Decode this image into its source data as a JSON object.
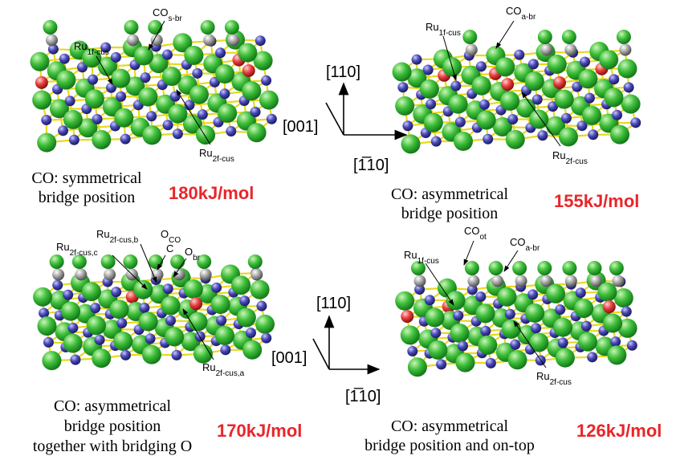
{
  "panels": [
    {
      "labels": [
        {
          "base": "Ru",
          "sub": "1f-cus"
        },
        {
          "base": "CO",
          "sub": "s-br"
        },
        {
          "base": "Ru",
          "sub": "2f-cus"
        }
      ],
      "caption": [
        "CO: symmetrical",
        "bridge position"
      ],
      "energy": "180kJ/mol"
    },
    {
      "labels": [
        {
          "base": "Ru",
          "sub": "1f-cus"
        },
        {
          "base": "CO",
          "sub": "a-br"
        },
        {
          "base": "Ru",
          "sub": "2f-cus"
        }
      ],
      "caption": [
        "CO: asymmetrical",
        "bridge position"
      ],
      "energy": "155kJ/mol"
    },
    {
      "labels": [
        {
          "base": "Ru",
          "sub": "2f-cus,c"
        },
        {
          "base": "Ru",
          "sub": "2f-cus,b"
        },
        {
          "base": "O",
          "sub": "CO"
        },
        {
          "base": "C"
        },
        {
          "base": "O",
          "sub": "br"
        },
        {
          "base": "Ru",
          "sub": "2f-cus,a"
        }
      ],
      "caption": [
        "CO: asymmetrical",
        "bridge position",
        "together with bridging O"
      ],
      "energy": "170kJ/mol"
    },
    {
      "labels": [
        {
          "base": "Ru",
          "sub": "1f-cus"
        },
        {
          "base": "CO",
          "sub": "ot"
        },
        {
          "base": "CO",
          "sub": "a-br"
        },
        {
          "base": "Ru",
          "sub": "2f-cus"
        }
      ],
      "caption": [
        "CO: asymmetrical",
        "bridge position and on-top"
      ],
      "energy": "126kJ/mol"
    }
  ],
  "axes": [
    {
      "up": "[110]",
      "left": "[001]",
      "right": "[1̅10]"
    },
    {
      "up": "[110]",
      "left": "[001]",
      "right": "[1̅10]"
    }
  ]
}
